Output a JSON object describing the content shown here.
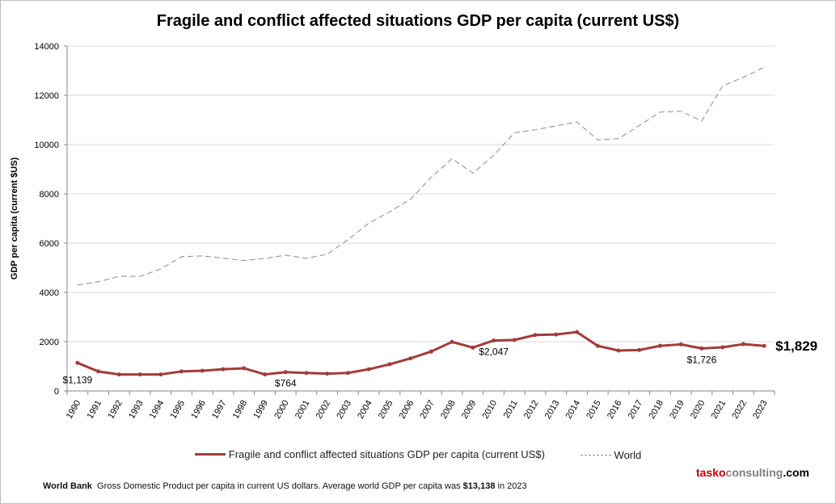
{
  "chart_data": {
    "type": "line",
    "title": "Fragile and conflict affected situations GDP per capita (current US$)",
    "ylabel": "GDP per capita (current $US)",
    "xlabel": "",
    "ylim": [
      0,
      14000
    ],
    "yticks": [
      0,
      2000,
      4000,
      6000,
      8000,
      10000,
      12000,
      14000
    ],
    "grid": true,
    "legend_position": "bottom",
    "categories": [
      "1990",
      "1991",
      "1992",
      "1993",
      "1994",
      "1995",
      "1996",
      "1997",
      "1998",
      "1999",
      "2000",
      "2001",
      "2002",
      "2003",
      "2004",
      "2005",
      "2006",
      "2007",
      "2008",
      "2009",
      "2010",
      "2011",
      "2012",
      "2013",
      "2014",
      "2015",
      "2016",
      "2017",
      "2018",
      "2019",
      "2020",
      "2021",
      "2022",
      "2023"
    ],
    "series": [
      {
        "name": "Fragile and conflict affected situations GDP per capita (current US$)",
        "color": "#a33b3b",
        "style": "solid-markers",
        "values": [
          1139,
          790,
          670,
          670,
          670,
          790,
          820,
          880,
          920,
          670,
          764,
          730,
          700,
          730,
          880,
          1080,
          1320,
          1600,
          1990,
          1760,
          2047,
          2070,
          2270,
          2290,
          2390,
          1830,
          1640,
          1660,
          1830,
          1890,
          1726,
          1770,
          1900,
          1829
        ]
      },
      {
        "name": "World",
        "color": "#8c8c8c",
        "style": "dashed",
        "values": [
          4300,
          4430,
          4650,
          4650,
          4950,
          5450,
          5480,
          5390,
          5290,
          5380,
          5510,
          5380,
          5550,
          6140,
          6810,
          7270,
          7780,
          8670,
          9430,
          8840,
          9560,
          10480,
          10600,
          10760,
          10920,
          10190,
          10240,
          10770,
          11320,
          11350,
          10960,
          12380,
          12730,
          13138
        ]
      }
    ],
    "annotations": [
      {
        "year": "1990",
        "text": "$1,139"
      },
      {
        "year": "2000",
        "text": "$764"
      },
      {
        "year": "2010",
        "text": "$2,047"
      },
      {
        "year": "2020",
        "text": "$1,726"
      },
      {
        "year": "2023",
        "text": "$1,829",
        "bold": true
      }
    ]
  },
  "brand": {
    "part1": "tasko",
    "part2": "consulting",
    "part3": ".com",
    "color1": "#c00000",
    "color2": "#7f7f7f"
  },
  "footnote": {
    "source": "World Bank",
    "text": "Gross Domestic Product per capita in current US dollars.  Average world GDP per capita was ",
    "value": "$13,138",
    "suffix": " in 2023"
  }
}
